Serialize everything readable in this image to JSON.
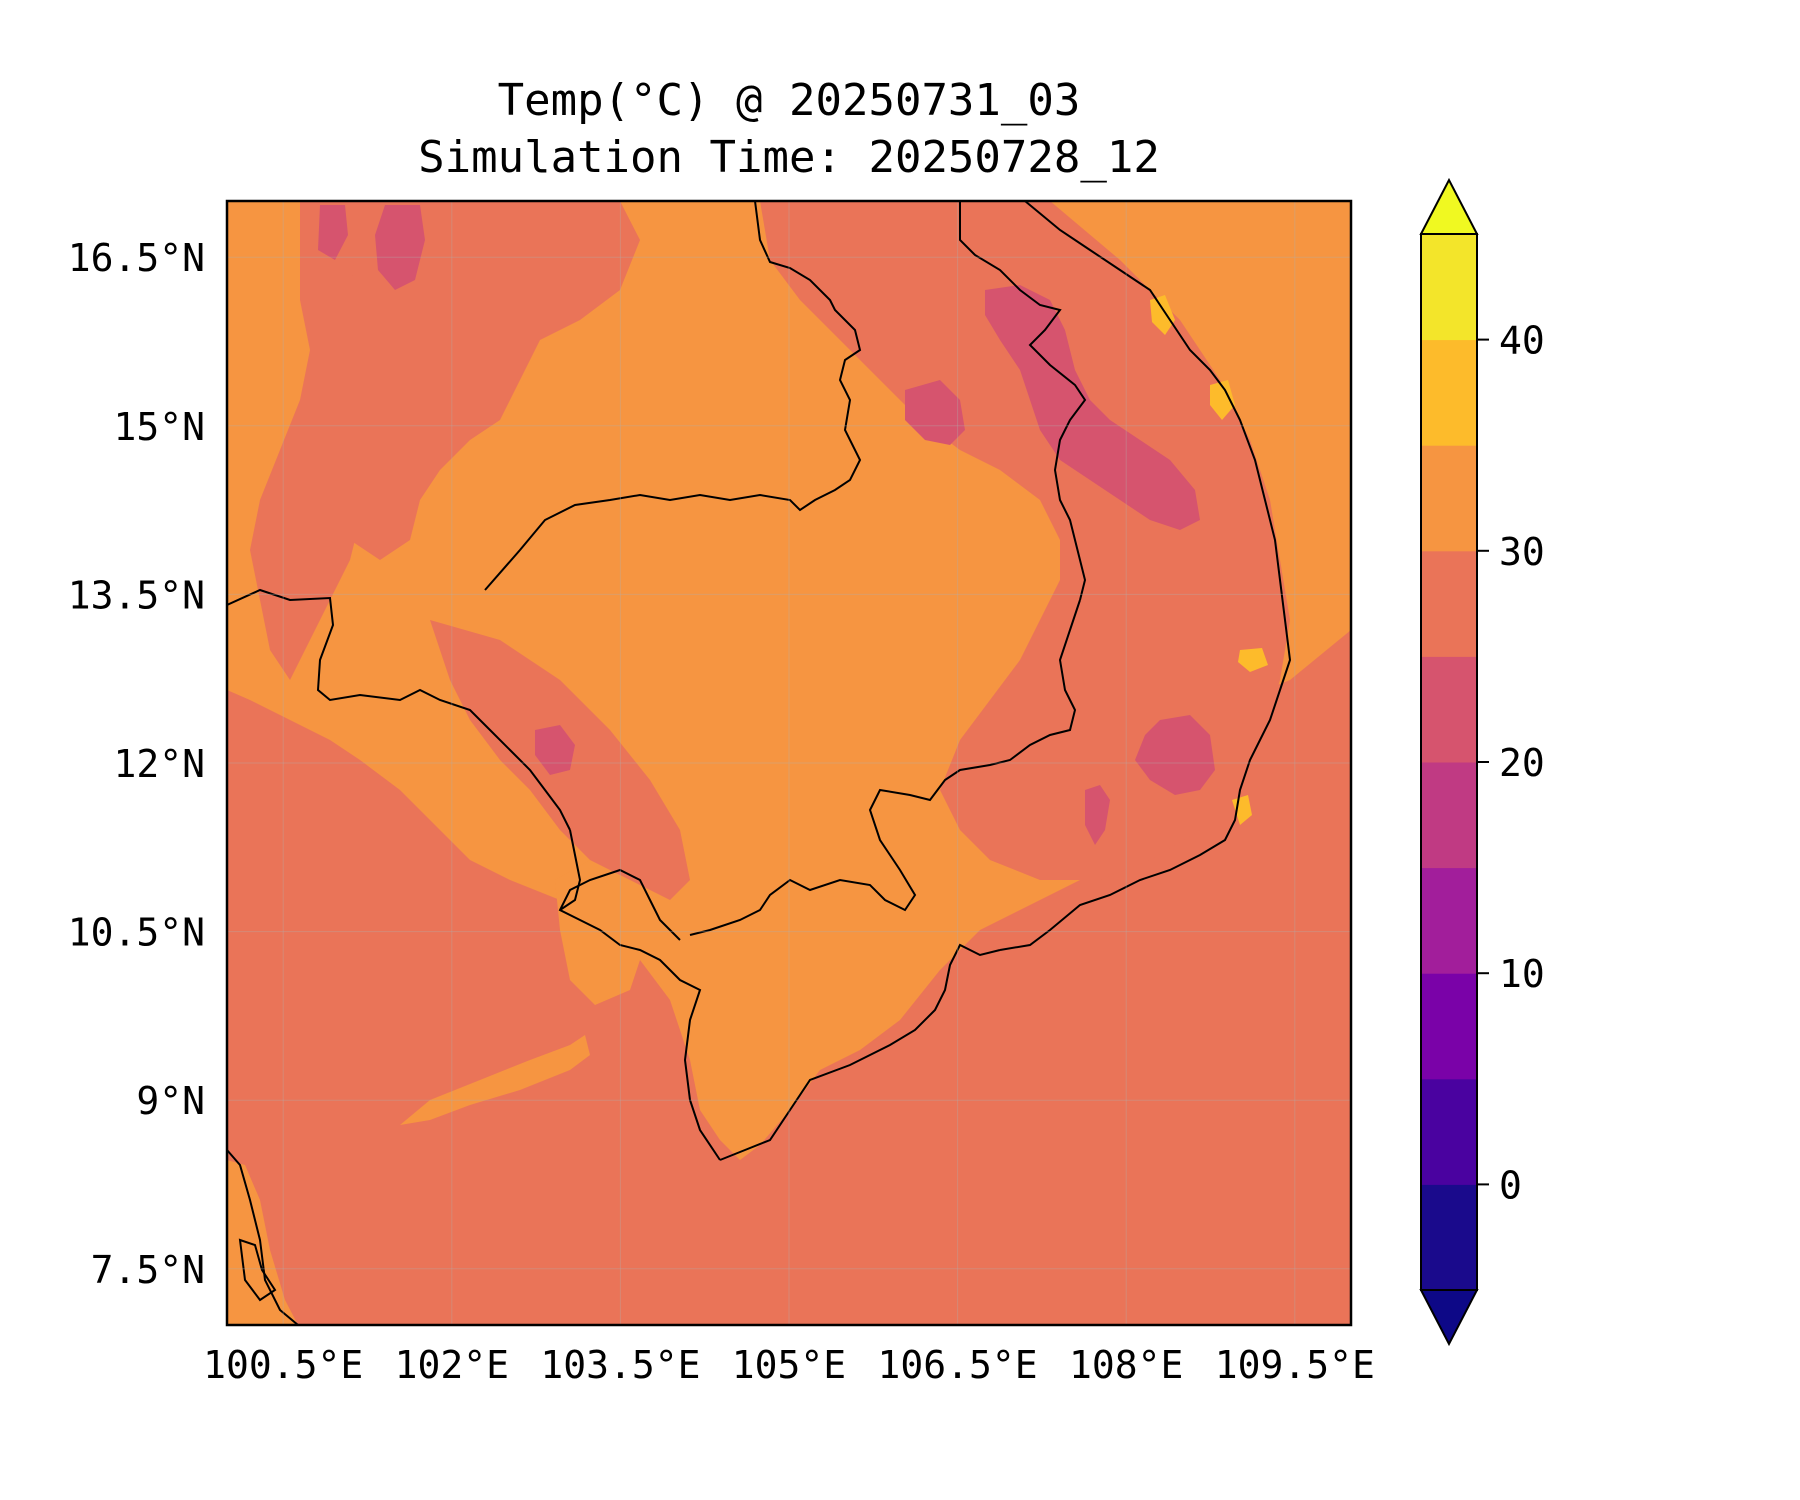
{
  "title": {
    "line1": "Temp(°C) @ 20250731_03",
    "line2": "Simulation Time: 20250728_12"
  },
  "chart_data": {
    "type": "heatmap",
    "variable": "Temp",
    "unit": "°C",
    "xlim": [
      100,
      110
    ],
    "ylim": [
      7,
      17
    ],
    "lon_ticks": [
      {
        "value": 100.5,
        "label": "100.5°E"
      },
      {
        "value": 102,
        "label": "102°E"
      },
      {
        "value": 103.5,
        "label": "103.5°E"
      },
      {
        "value": 105,
        "label": "105°E"
      },
      {
        "value": 106.5,
        "label": "106.5°E"
      },
      {
        "value": 108,
        "label": "108°E"
      },
      {
        "value": 109.5,
        "label": "109.5°E"
      }
    ],
    "lat_ticks": [
      {
        "value": 16.5,
        "label": "16.5°N"
      },
      {
        "value": 15,
        "label": "15°N"
      },
      {
        "value": 13.5,
        "label": "13.5°N"
      },
      {
        "value": 12,
        "label": "12°N"
      },
      {
        "value": 10.5,
        "label": "10.5°N"
      },
      {
        "value": 9,
        "label": "9°N"
      },
      {
        "value": 7.5,
        "label": "7.5°N"
      }
    ],
    "gridlines": true,
    "colorbar": {
      "extend": "both",
      "levels": [
        -5,
        0,
        5,
        10,
        15,
        20,
        25,
        30,
        35,
        40,
        45
      ],
      "bin_colors": [
        "#1a0a8c",
        "#4a02a0",
        "#7a02a8",
        "#a21e9b",
        "#c03a83",
        "#d6546e",
        "#ea7458",
        "#f69541",
        "#fdbb2b",
        "#f3e52a"
      ],
      "under_color": "#0d0887",
      "over_color": "#f0f921",
      "ticks": [
        {
          "value": 0,
          "label": "0"
        },
        {
          "value": 10,
          "label": "10"
        },
        {
          "value": 20,
          "label": "20"
        },
        {
          "value": 30,
          "label": "30"
        },
        {
          "value": 40,
          "label": "40"
        }
      ]
    },
    "field_colors": {
      "sea": "#ea7458",
      "lowland": "#f69541",
      "highland": "#d6546e",
      "coastal_hot": "#fdbb2b"
    }
  }
}
